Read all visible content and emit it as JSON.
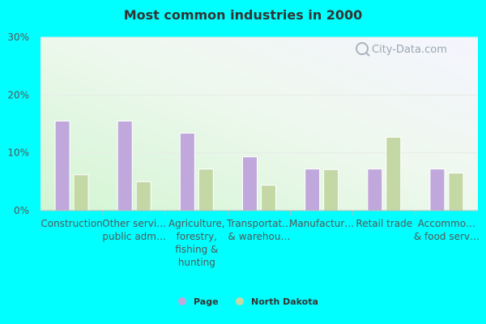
{
  "chart_data": {
    "type": "bar",
    "title": "Most common industries in 2000",
    "categories": [
      "Construction",
      "Other services, except public administration",
      "Agriculture, forestry, fishing & hunting",
      "Transportation & warehousing",
      "Manufacturing",
      "Retail trade",
      "Accommodation & food services"
    ],
    "category_labels": [
      [
        "Construction"
      ],
      [
        "Other servi…",
        "public adm…"
      ],
      [
        "Agriculture,",
        "forestry,",
        "fishing &",
        "hunting"
      ],
      [
        "Transportat…",
        "& warehou…"
      ],
      [
        "Manufactur…"
      ],
      [
        "Retail trade"
      ],
      [
        "Accommo…",
        "& food serv…"
      ]
    ],
    "series": [
      {
        "name": "Page",
        "color": "#c0a8dc",
        "values": [
          15.5,
          15.5,
          13.4,
          9.3,
          7.2,
          7.2,
          7.2
        ]
      },
      {
        "name": "North Dakota",
        "color": "#c4d8a6",
        "values": [
          6.2,
          5.0,
          7.2,
          4.4,
          7.1,
          12.7,
          6.5
        ]
      }
    ],
    "ylim": [
      0,
      30
    ],
    "yticks": [
      "0%",
      "10%",
      "20%",
      "30%"
    ],
    "ytick_values": [
      0,
      10,
      20,
      30
    ],
    "grid": true,
    "legend_position": "bottom-center",
    "watermark": "City-Data.com"
  }
}
